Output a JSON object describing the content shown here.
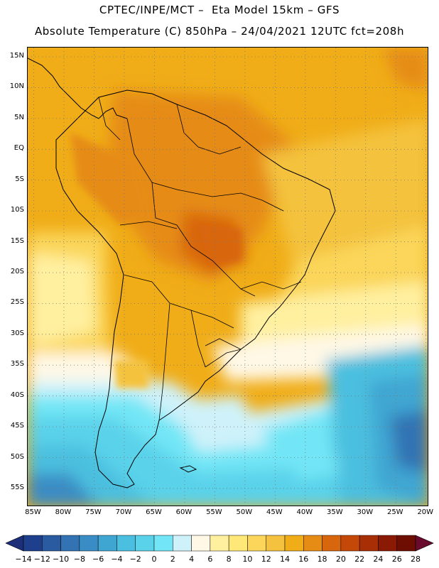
{
  "header": {
    "line1": "CPTEC/INPE/MCT –  Eta Model 15km – GFS",
    "line2": "Absolute Temperature (C) 850hPa – 24/04/2021 12UTC fct=208h"
  },
  "map": {
    "lat_labels": [
      "15N",
      "10N",
      "5N",
      "EQ",
      "5S",
      "10S",
      "15S",
      "20S",
      "25S",
      "30S",
      "35S",
      "40S",
      "45S",
      "50S",
      "55S"
    ],
    "lat_values": [
      15,
      10,
      5,
      0,
      -5,
      -10,
      -15,
      -20,
      -25,
      -30,
      -35,
      -40,
      -45,
      -50,
      -55
    ],
    "lon_labels": [
      "85W",
      "80W",
      "75W",
      "70W",
      "65W",
      "60W",
      "55W",
      "50W",
      "45W",
      "40W",
      "35W",
      "30W",
      "25W",
      "20W"
    ],
    "lon_values": [
      -85,
      -80,
      -75,
      -70,
      -65,
      -60,
      -55,
      -50,
      -45,
      -40,
      -35,
      -30,
      -25,
      -20
    ],
    "lon_range": [
      -86,
      -19.5
    ],
    "lat_range": [
      -58,
      16.5
    ],
    "gridline_style": "dotted"
  },
  "colorbar": {
    "labels": [
      "-14",
      "-12",
      "-10",
      "-8",
      "-6",
      "-4",
      "-2",
      "0",
      "2",
      "4",
      "6",
      "8",
      "10",
      "12",
      "14",
      "16",
      "18",
      "20",
      "22",
      "24",
      "26",
      "28"
    ],
    "colors": [
      "#1e3f8c",
      "#2a5aa0",
      "#3373b4",
      "#3a8cc4",
      "#3fa6d2",
      "#4bbfdf",
      "#5ad2ea",
      "#72e6f6",
      "#cff2fa",
      "#fff8e6",
      "#fff0a0",
      "#fde878",
      "#fbd65a",
      "#f4c23e",
      "#f0ad18",
      "#e68c14",
      "#d8660c",
      "#c44808",
      "#a82e06",
      "#8a1a04",
      "#6e0e02"
    ],
    "under_color": "#1e2f7a",
    "over_color": "#6a0a2c"
  }
}
